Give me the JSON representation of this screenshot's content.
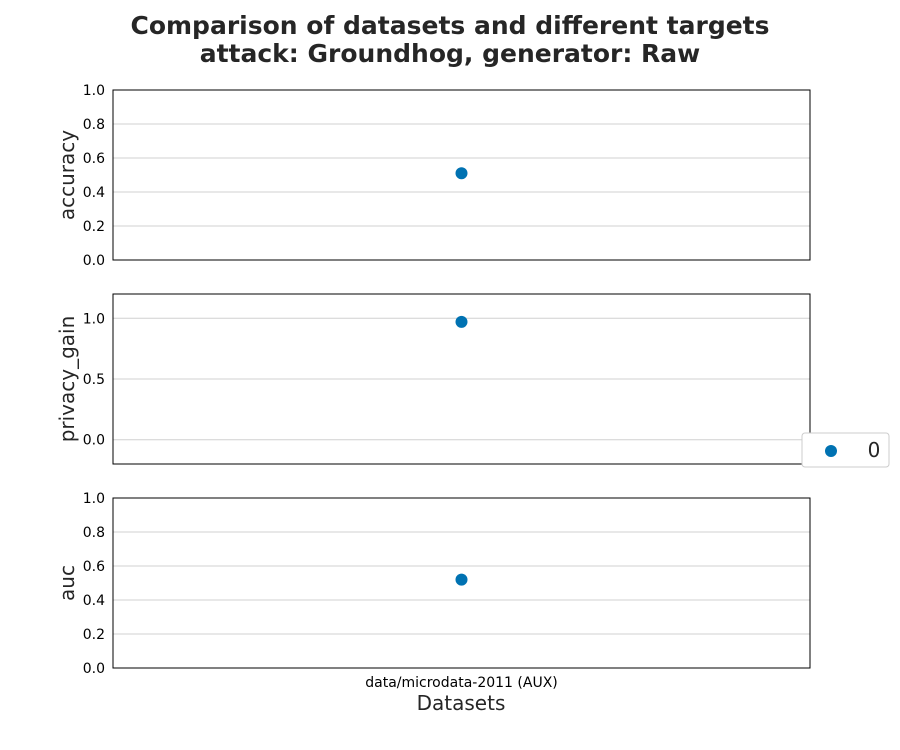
{
  "chart_data": {
    "type": "scatter",
    "title_line1": "Comparison of datasets and different targets",
    "title_line2": "attack: Groundhog, generator: Raw",
    "xlabel": "Datasets",
    "categories": [
      "data/microdata-2011 (AUX)"
    ],
    "grid": "horizontal",
    "marker_color": "#0072b2",
    "legend": {
      "placement": "center-right",
      "entries": [
        {
          "label": "0",
          "color": "#0072b2"
        }
      ]
    },
    "panels": [
      {
        "ylabel": "accuracy",
        "ylim": [
          0.0,
          1.0
        ],
        "yticks": [
          0.0,
          0.2,
          0.4,
          0.6,
          0.8,
          1.0
        ],
        "ytick_labels": [
          "0.0",
          "0.2",
          "0.4",
          "0.6",
          "0.8",
          "1.0"
        ],
        "series": [
          {
            "name": "0",
            "values": [
              0.51
            ]
          }
        ]
      },
      {
        "ylabel": "privacy_gain",
        "ylim": [
          -0.2,
          1.2
        ],
        "yticks": [
          0.0,
          0.5,
          1.0
        ],
        "ytick_labels": [
          "0.0",
          "0.5",
          "1.0"
        ],
        "series": [
          {
            "name": "0",
            "values": [
              0.97
            ]
          }
        ]
      },
      {
        "ylabel": "auc",
        "ylim": [
          0.0,
          1.0
        ],
        "yticks": [
          0.0,
          0.2,
          0.4,
          0.6,
          0.8,
          1.0
        ],
        "ytick_labels": [
          "0.0",
          "0.2",
          "0.4",
          "0.6",
          "0.8",
          "1.0"
        ],
        "series": [
          {
            "name": "0",
            "values": [
              0.52
            ]
          }
        ]
      }
    ]
  }
}
